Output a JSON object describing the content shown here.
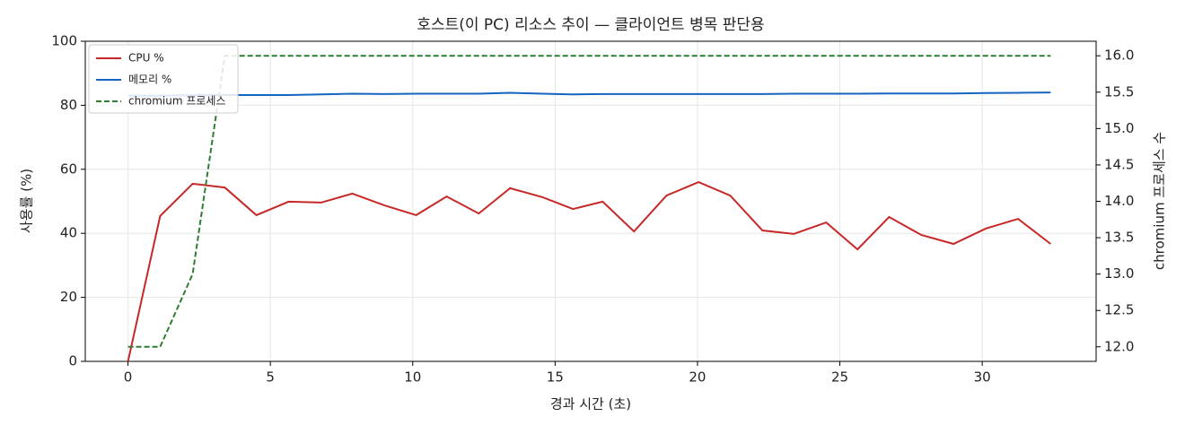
{
  "chart_data": {
    "type": "line",
    "title": "호스트(이 PC) 리소스 추이 — 클라이언트 병목 판단용",
    "x_label": "경과 시간 (초)",
    "y_label": "사용률 (%)",
    "y2_label": "chromium 프로세스 수",
    "x": [
      0,
      1.13,
      2.27,
      3.4,
      4.51,
      5.64,
      6.78,
      7.88,
      9.01,
      10.12,
      11.19,
      12.32,
      13.42,
      14.56,
      15.63,
      16.67,
      17.77,
      18.91,
      20.04,
      21.15,
      22.28,
      23.38,
      24.52,
      25.62,
      26.73,
      27.86,
      28.99,
      30.13,
      31.26,
      32.4
    ],
    "series": [
      {
        "name": "CPU %",
        "color": "#c62828",
        "style": "solid",
        "values": [
          0,
          45.4,
          55.5,
          54.3,
          45.7,
          49.9,
          49.6,
          52.4,
          48.7,
          45.7,
          51.5,
          46.2,
          54.1,
          51.3,
          47.6,
          49.9,
          40.6,
          51.8,
          56.0,
          51.8,
          40.9,
          39.8,
          43.4,
          35.0,
          45.1,
          39.5,
          36.7,
          41.5,
          44.5,
          36.7
        ]
      },
      {
        "name": "메모리 %",
        "color": "#1565c0",
        "style": "solid",
        "values": [
          83.0,
          83.0,
          83.1,
          83.2,
          83.2,
          83.2,
          83.4,
          83.6,
          83.5,
          83.6,
          83.6,
          83.6,
          83.9,
          83.6,
          83.4,
          83.5,
          83.5,
          83.5,
          83.5,
          83.5,
          83.5,
          83.6,
          83.6,
          83.6,
          83.7,
          83.7,
          83.7,
          83.8,
          83.9,
          84.0
        ]
      },
      {
        "name": "chromium 프로세스",
        "color": "#2e7d32",
        "style": "dashed",
        "axis": "y2",
        "values": [
          12,
          12,
          13,
          16,
          16,
          16,
          16,
          16,
          16,
          16,
          16,
          16,
          16,
          16,
          16,
          16,
          16,
          16,
          16,
          16,
          16,
          16,
          16,
          16,
          16,
          16,
          16,
          16,
          16,
          16
        ]
      }
    ],
    "xlim": [
      -1.5,
      34.0
    ],
    "xticks": [
      0,
      5,
      10,
      15,
      20,
      25,
      30
    ],
    "ylim": [
      0,
      100
    ],
    "yticks": [
      0,
      20,
      40,
      60,
      80,
      100
    ],
    "y2lim": [
      11.8,
      16.2
    ],
    "y2ticks": [
      {
        "value": 12,
        "label": "12.0"
      },
      12.5,
      {
        "value": 13,
        "label": "13.0"
      },
      13.5,
      {
        "value": 14,
        "label": "14.0"
      },
      14.5,
      {
        "value": 15,
        "label": "15.0"
      },
      15.5,
      {
        "value": 16,
        "label": "16.0"
      }
    ],
    "grid": true,
    "legend": "upper-left"
  }
}
